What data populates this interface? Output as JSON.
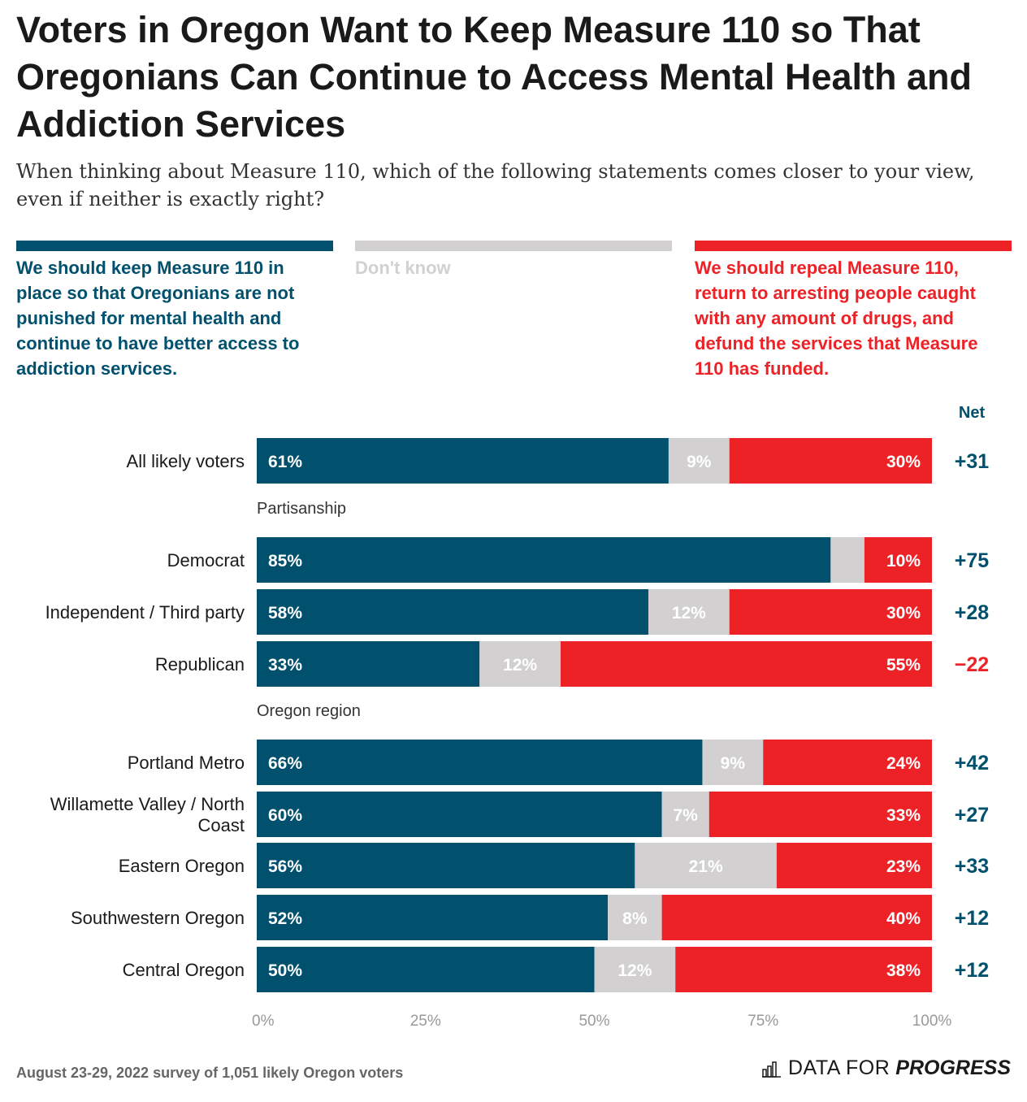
{
  "title": "Voters in Oregon Want to Keep Measure 110 so That Oregonians Can Continue to Access Mental Health and Addiction Services",
  "subtitle": "When thinking about Measure 110, which of the following statements comes closer to your view, even if neither is exactly right?",
  "legend": {
    "keep": "We should keep Measure 110 in place so that Oregonians are not punished for mental health and continue to have better access to addiction services.",
    "dont_know": "Don't know",
    "repeal": "We should repeal Measure 110, return to arresting people caught with any amount of drugs, and defund the services that Measure 110 has funded."
  },
  "colors": {
    "keep": "#00506e",
    "dont_know": "#d2d0d1",
    "repeal": "#ec2227",
    "axis_text": "#999999",
    "net_positive": "#00506e",
    "net_negative": "#ec2227"
  },
  "footnote": "August 23-29, 2022 survey of 1,051 likely Oregon voters",
  "brand": {
    "a": "DATA FOR",
    "b": "PROGRESS"
  },
  "chart_data": {
    "type": "bar",
    "orientation": "horizontal",
    "stacked": true,
    "net_header": "Net",
    "xlim": [
      0,
      100
    ],
    "x_ticks": [
      "0%",
      "25%",
      "50%",
      "75%",
      "100%"
    ],
    "grid": false,
    "series_names": [
      "keep",
      "dont_know",
      "repeal"
    ],
    "groups": [
      {
        "label": "",
        "rows": [
          {
            "category": "All likely voters",
            "keep": 61,
            "dont_know": 9,
            "repeal": 30,
            "keep_label": "61%",
            "dont_know_label": "9%",
            "repeal_label": "30%",
            "net": "+31"
          }
        ]
      },
      {
        "label": "Partisanship",
        "rows": [
          {
            "category": "Democrat",
            "keep": 85,
            "dont_know": 5,
            "repeal": 10,
            "keep_label": "85%",
            "dont_know_label": "",
            "repeal_label": "10%",
            "net": "+75"
          },
          {
            "category": "Independent / Third party",
            "keep": 58,
            "dont_know": 12,
            "repeal": 30,
            "keep_label": "58%",
            "dont_know_label": "12%",
            "repeal_label": "30%",
            "net": "+28"
          },
          {
            "category": "Republican",
            "keep": 33,
            "dont_know": 12,
            "repeal": 55,
            "keep_label": "33%",
            "dont_know_label": "12%",
            "repeal_label": "55%",
            "net": "−22"
          }
        ]
      },
      {
        "label": "Oregon region",
        "rows": [
          {
            "category": "Portland Metro",
            "keep": 66,
            "dont_know": 9,
            "repeal": 24,
            "keep_label": "66%",
            "dont_know_label": "9%",
            "repeal_label": "24%",
            "net": "+42"
          },
          {
            "category": "Willamette Valley / North Coast",
            "keep": 60,
            "dont_know": 7,
            "repeal": 33,
            "keep_label": "60%",
            "dont_know_label": "7%",
            "repeal_label": "33%",
            "net": "+27"
          },
          {
            "category": "Eastern Oregon",
            "keep": 56,
            "dont_know": 21,
            "repeal": 23,
            "keep_label": "56%",
            "dont_know_label": "21%",
            "repeal_label": "23%",
            "net": "+33"
          },
          {
            "category": "Southwestern Oregon",
            "keep": 52,
            "dont_know": 8,
            "repeal": 40,
            "keep_label": "52%",
            "dont_know_label": "8%",
            "repeal_label": "40%",
            "net": "+12"
          },
          {
            "category": "Central Oregon",
            "keep": 50,
            "dont_know": 12,
            "repeal": 38,
            "keep_label": "50%",
            "dont_know_label": "12%",
            "repeal_label": "38%",
            "net": "+12"
          }
        ]
      }
    ]
  }
}
